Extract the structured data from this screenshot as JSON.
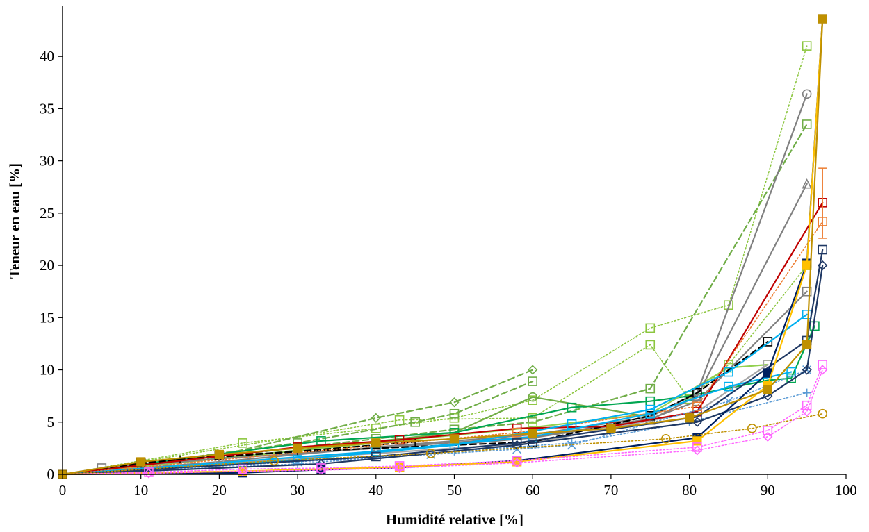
{
  "chart_data": {
    "type": "line",
    "title": "",
    "xlabel": "Humidité relative [%]",
    "ylabel": "Teneur en eau [%]",
    "xlim": [
      0,
      100
    ],
    "ylim": [
      0,
      44
    ],
    "xticks": [
      0,
      10,
      20,
      30,
      40,
      50,
      60,
      70,
      80,
      90,
      100
    ],
    "yticks": [
      0,
      5,
      10,
      15,
      20,
      25,
      30,
      35,
      40
    ],
    "grid": false,
    "legend": "none",
    "series": [
      {
        "color": "#8cc63f",
        "line": "dotted",
        "marker": "square",
        "points": [
          [
            0,
            0
          ],
          [
            23,
            3
          ],
          [
            40,
            4.4
          ],
          [
            50,
            5.4
          ],
          [
            60,
            7.1
          ],
          [
            75,
            14
          ],
          [
            85,
            16.2
          ],
          [
            95,
            41
          ]
        ]
      },
      {
        "color": "#8cc63f",
        "line": "dotted",
        "marker": "square",
        "points": [
          [
            0,
            0
          ],
          [
            43,
            5.2
          ],
          [
            60,
            5.4
          ],
          [
            75,
            12.4
          ],
          [
            80,
            7.2
          ],
          [
            85,
            10.5
          ],
          [
            95,
            20
          ]
        ]
      },
      {
        "color": "#70ad47",
        "line": "dashed",
        "marker": "diamond",
        "points": [
          [
            0,
            0
          ],
          [
            20,
            1.8
          ],
          [
            40,
            5.4
          ],
          [
            50,
            6.9
          ],
          [
            60,
            10
          ]
        ]
      },
      {
        "color": "#70ad47",
        "line": "dashed",
        "marker": "square",
        "points": [
          [
            0,
            0
          ],
          [
            30,
            3
          ],
          [
            45,
            5
          ],
          [
            50,
            5.8
          ],
          [
            60,
            8.9
          ]
        ]
      },
      {
        "color": "#70ad47",
        "line": "dashed",
        "marker": "square",
        "points": [
          [
            0,
            0
          ],
          [
            40,
            3.4
          ],
          [
            50,
            4.3
          ],
          [
            60,
            5
          ],
          [
            75,
            8.2
          ],
          [
            95,
            33.5
          ]
        ]
      },
      {
        "color": "#70ad47",
        "line": "solid",
        "marker": "circle",
        "points": [
          [
            0,
            0
          ],
          [
            30,
            2.3
          ],
          [
            50,
            4
          ],
          [
            60,
            7.4
          ],
          [
            75,
            5.5
          ]
        ]
      },
      {
        "color": "#00a651",
        "line": "solid",
        "marker": "square",
        "points": [
          [
            0,
            0
          ],
          [
            33,
            3.2
          ],
          [
            50,
            4
          ],
          [
            65,
            6.4
          ],
          [
            75,
            7
          ],
          [
            80,
            7.5
          ],
          [
            90,
            9
          ],
          [
            93,
            9.2
          ],
          [
            96,
            14.2
          ]
        ]
      },
      {
        "color": "#92d050",
        "line": "solid",
        "marker": "square",
        "points": [
          [
            0,
            0
          ],
          [
            40,
            3
          ],
          [
            60,
            4.5
          ],
          [
            75,
            5.8
          ],
          [
            85,
            10.2
          ],
          [
            90,
            10.5
          ]
        ]
      },
      {
        "color": "#808080",
        "line": "solid",
        "marker": "circle",
        "points": [
          [
            0,
            0
          ],
          [
            20,
            1.2
          ],
          [
            40,
            2.6
          ],
          [
            60,
            3.8
          ],
          [
            75,
            5.5
          ],
          [
            81,
            7.8
          ],
          [
            95,
            36.4
          ]
        ]
      },
      {
        "color": "#808080",
        "line": "solid",
        "marker": "triangle",
        "points": [
          [
            0,
            0
          ],
          [
            20,
            1
          ],
          [
            40,
            2.2
          ],
          [
            60,
            3.5
          ],
          [
            75,
            5.2
          ],
          [
            81,
            7.5
          ],
          [
            95,
            27.8
          ]
        ]
      },
      {
        "color": "#808080",
        "line": "solid",
        "marker": "square",
        "points": [
          [
            0,
            0
          ],
          [
            5,
            0.6
          ],
          [
            20,
            1.5
          ],
          [
            40,
            2.5
          ],
          [
            60,
            3.6
          ],
          [
            75,
            5.3
          ],
          [
            81,
            7
          ],
          [
            95,
            17.5
          ]
        ]
      },
      {
        "color": "#a6a6a6",
        "line": "solid",
        "marker": "square",
        "points": [
          [
            0,
            0
          ],
          [
            20,
            1.1
          ],
          [
            40,
            2
          ],
          [
            60,
            3
          ],
          [
            81,
            6
          ],
          [
            90,
            10.5
          ]
        ]
      },
      {
        "color": "#000000",
        "line": "dashed",
        "marker": "square",
        "points": [
          [
            0,
            0
          ],
          [
            10,
            1.1
          ],
          [
            20,
            1.8
          ],
          [
            40,
            2.5
          ],
          [
            60,
            3.1
          ],
          [
            75,
            5.6
          ],
          [
            81,
            7.8
          ],
          [
            90,
            12.7
          ]
        ]
      },
      {
        "color": "#000000",
        "line": "dashed",
        "marker": "plus",
        "points": [
          [
            0,
            0
          ],
          [
            15,
            1.4
          ],
          [
            30,
            2.2
          ],
          [
            45,
            3.1
          ]
        ]
      },
      {
        "color": "#c00000",
        "line": "solid",
        "marker": "square",
        "points": [
          [
            0,
            0
          ],
          [
            30,
            2.6
          ],
          [
            43,
            3.3
          ],
          [
            58,
            4.4
          ],
          [
            70,
            4.6
          ],
          [
            81,
            6
          ],
          [
            97,
            26
          ]
        ]
      },
      {
        "color": "#ed7d31",
        "line": "dotted",
        "marker": "square",
        "points": [
          [
            0,
            0
          ],
          [
            58,
            4
          ],
          [
            81,
            6.5
          ],
          [
            97,
            24.2
          ]
        ]
      },
      {
        "color": "#00b0f0",
        "line": "solid",
        "marker": "square",
        "points": [
          [
            0,
            0
          ],
          [
            30,
            1.4
          ],
          [
            50,
            2.8
          ],
          [
            65,
            4.8
          ],
          [
            75,
            6.2
          ],
          [
            85,
            9.8
          ],
          [
            95,
            15.3
          ]
        ]
      },
      {
        "color": "#00b0f0",
        "line": "solid",
        "marker": "square",
        "points": [
          [
            0,
            0
          ],
          [
            40,
            2.2
          ],
          [
            60,
            3.6
          ],
          [
            75,
            5.8
          ],
          [
            85,
            8.4
          ],
          [
            93,
            9.8
          ]
        ]
      },
      {
        "color": "#5b9bd5",
        "line": "dotted",
        "marker": "cross",
        "points": [
          [
            0,
            0
          ],
          [
            30,
            1.2
          ],
          [
            47,
            1.9
          ],
          [
            58,
            2.4
          ],
          [
            65,
            2.8
          ],
          [
            85,
            7
          ],
          [
            95,
            10
          ]
        ]
      },
      {
        "color": "#5b9bd5",
        "line": "dotted",
        "marker": "plus",
        "points": [
          [
            0,
            0
          ],
          [
            30,
            1
          ],
          [
            50,
            2.2
          ],
          [
            65,
            3
          ],
          [
            80,
            5
          ],
          [
            95,
            7.8
          ]
        ]
      },
      {
        "color": "#1f3864",
        "line": "solid",
        "marker": "diamond",
        "points": [
          [
            0,
            0
          ],
          [
            33,
            1
          ],
          [
            58,
            2.8
          ],
          [
            81,
            5
          ],
          [
            90,
            7.5
          ],
          [
            95,
            10
          ],
          [
            97,
            20
          ]
        ]
      },
      {
        "color": "#1f3864",
        "line": "solid",
        "marker": "square",
        "points": [
          [
            0,
            0
          ],
          [
            40,
            1.7
          ],
          [
            58,
            3
          ],
          [
            81,
            5.5
          ],
          [
            95,
            12.8
          ],
          [
            97,
            21.5
          ]
        ]
      },
      {
        "color": "#002060",
        "line": "solid",
        "marker": "filled-square",
        "points": [
          [
            0,
            0
          ],
          [
            23,
            0.15
          ],
          [
            33,
            0.45
          ],
          [
            43,
            0.65
          ],
          [
            58,
            1.3
          ],
          [
            81,
            3.5
          ],
          [
            90,
            9.7
          ],
          [
            95,
            20.2
          ],
          [
            97,
            43.6
          ]
        ]
      },
      {
        "color": "#ffc000",
        "line": "solid",
        "marker": "filled-square",
        "points": [
          [
            0,
            0
          ],
          [
            23,
            0.3
          ],
          [
            43,
            0.7
          ],
          [
            58,
            1.2
          ],
          [
            81,
            3.2
          ],
          [
            90,
            8.5
          ],
          [
            95,
            20
          ],
          [
            97,
            43.6
          ]
        ]
      },
      {
        "color": "#bf9000",
        "line": "solid",
        "marker": "filled-square",
        "points": [
          [
            0,
            0
          ],
          [
            10,
            1.2
          ],
          [
            20,
            1.9
          ],
          [
            30,
            2.5
          ],
          [
            40,
            3
          ],
          [
            50,
            3.4
          ],
          [
            60,
            3.9
          ],
          [
            70,
            4.4
          ],
          [
            80,
            5.4
          ],
          [
            90,
            8.1
          ],
          [
            95,
            12.4
          ],
          [
            97,
            43.6
          ]
        ]
      },
      {
        "color": "#bf9000",
        "line": "dotted",
        "marker": "circle",
        "points": [
          [
            0,
            0
          ],
          [
            27,
            1.3
          ],
          [
            47,
            2
          ],
          [
            77,
            3.4
          ],
          [
            88,
            4.4
          ],
          [
            97,
            5.8
          ]
        ]
      },
      {
        "color": "#ff66ff",
        "line": "dotted",
        "marker": "square",
        "points": [
          [
            0,
            0
          ],
          [
            11,
            0.2
          ],
          [
            23,
            0.5
          ],
          [
            33,
            0.6
          ],
          [
            43,
            0.8
          ],
          [
            58,
            1.3
          ],
          [
            81,
            2.6
          ],
          [
            90,
            4.2
          ],
          [
            95,
            6.6
          ],
          [
            97,
            10.5
          ]
        ]
      },
      {
        "color": "#ff66ff",
        "line": "dotted",
        "marker": "diamond",
        "points": [
          [
            0,
            0
          ],
          [
            11,
            0.1
          ],
          [
            23,
            0.3
          ],
          [
            33,
            0.4
          ],
          [
            43,
            0.6
          ],
          [
            58,
            1.1
          ],
          [
            81,
            2.3
          ],
          [
            90,
            3.6
          ],
          [
            95,
            6
          ],
          [
            97,
            10
          ]
        ]
      }
    ]
  }
}
